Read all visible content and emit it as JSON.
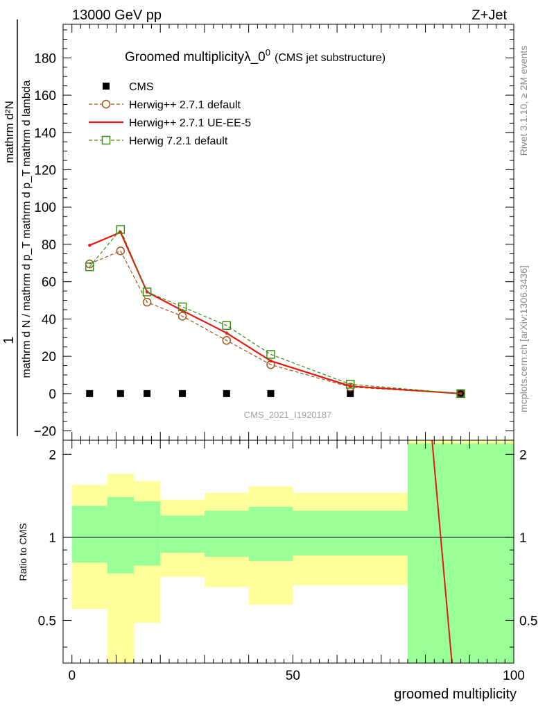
{
  "header": {
    "left": "13000 GeV pp",
    "right": "Z+Jet"
  },
  "side_labels": {
    "rivet": "Rivet 3.1.10, ≥ 2M events",
    "mcplots": "mcplots.cern.ch [arXiv:1306.3436]"
  },
  "colors": {
    "cms": "#000000",
    "herwig_pp_default": "#a0521a",
    "herwig_pp_ueee5": "#e8160e",
    "herwig7_default": "#3c8c14",
    "band_inner": "#99ff99",
    "band_outer": "#ffff99"
  },
  "chart_data": [
    {
      "type": "line",
      "title": "Groomed multiplicityλ_0",
      "title_superscript": "0",
      "title_suffix": "(CMS jet substructure)",
      "watermark": "CMS_2021_I1920187",
      "ylabel_numerator_prefix": "1",
      "ylabel_numerator": "mathrm d²N",
      "ylabel_denominator": "mathrm d N / mathrm d p_T mathrm d p_T mathrm d lambda",
      "xlim": [
        -2,
        100
      ],
      "ylim": [
        -25,
        198
      ],
      "yticks": [
        -20,
        0,
        20,
        40,
        60,
        80,
        100,
        120,
        140,
        160,
        180
      ],
      "grid": false,
      "legend_position": "top-left",
      "bins": [
        [
          0,
          8
        ],
        [
          8,
          14
        ],
        [
          14,
          20
        ],
        [
          20,
          30
        ],
        [
          30,
          40
        ],
        [
          40,
          50
        ],
        [
          50,
          76
        ],
        [
          76,
          100
        ]
      ],
      "series": [
        {
          "name": "CMS",
          "style": "markers",
          "x": [
            4,
            11,
            17,
            25,
            35,
            45,
            63,
            88
          ],
          "y": [
            0,
            0,
            0,
            0,
            0,
            0,
            0,
            0
          ]
        },
        {
          "name": "Herwig++ 2.7.1 default",
          "style": "dashed-circle",
          "x": [
            4,
            11,
            17,
            25,
            35,
            45,
            63,
            88
          ],
          "y": [
            69.5,
            76.5,
            49,
            41.5,
            28.5,
            15.5,
            3.5,
            0
          ]
        },
        {
          "name": "Herwig++ 2.7.1 UE-EE-5",
          "style": "solid",
          "x": [
            4,
            11,
            17,
            25,
            35,
            45,
            63,
            88
          ],
          "y": [
            79.5,
            86.5,
            54.5,
            44.5,
            32.5,
            17.5,
            4,
            0
          ]
        },
        {
          "name": "Herwig 7.2.1 default",
          "style": "dashed-square",
          "x": [
            4,
            11,
            17,
            25,
            35,
            45,
            63,
            88
          ],
          "y": [
            68,
            88,
            54.5,
            46.5,
            36.5,
            21,
            5,
            0
          ]
        }
      ]
    },
    {
      "type": "area",
      "ylabel": "Ratio to CMS",
      "xlabel": "groomed multiplicity",
      "xlim": [
        -2,
        100
      ],
      "ylim": [
        0.35,
        2.25
      ],
      "xticks": [
        0,
        50,
        100
      ],
      "yticks": [
        0.5,
        1,
        2
      ],
      "reference_line": 1,
      "bands": [
        {
          "x0": 0,
          "x1": 8,
          "inner": [
            0.81,
            1.3
          ],
          "outer": [
            0.55,
            1.55
          ]
        },
        {
          "x0": 8,
          "x1": 14,
          "inner": [
            0.74,
            1.4
          ],
          "outer": [
            0.35,
            1.7
          ]
        },
        {
          "x0": 14,
          "x1": 20,
          "inner": [
            0.79,
            1.35
          ],
          "outer": [
            0.49,
            1.6
          ]
        },
        {
          "x0": 20,
          "x1": 30,
          "inner": [
            0.88,
            1.2
          ],
          "outer": [
            0.72,
            1.37
          ]
        },
        {
          "x0": 30,
          "x1": 40,
          "inner": [
            0.85,
            1.25
          ],
          "outer": [
            0.66,
            1.45
          ]
        },
        {
          "x0": 40,
          "x1": 50,
          "inner": [
            0.82,
            1.29
          ],
          "outer": [
            0.57,
            1.53
          ]
        },
        {
          "x0": 50,
          "x1": 76,
          "inner": [
            0.86,
            1.25
          ],
          "outer": [
            0.67,
            1.45
          ]
        },
        {
          "x0": 76,
          "x1": 100,
          "inner": [
            0.35,
            2.19
          ],
          "outer": [
            0.35,
            2.25
          ]
        }
      ],
      "ratio_line": {
        "name": "Herwig++ 2.7.1 UE-EE-5",
        "x": [
          81.5,
          86
        ],
        "y": [
          2.25,
          0.35
        ]
      }
    }
  ]
}
